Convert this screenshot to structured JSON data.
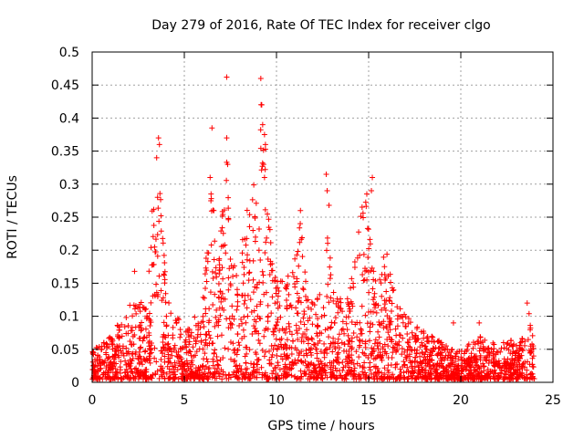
{
  "chart_data": {
    "type": "scatter",
    "title": "Day 279 of 2016, Rate Of TEC Index for receiver clgo",
    "xlabel": "GPS time / hours",
    "ylabel": "ROTI / TECUs",
    "xlim": [
      0,
      25
    ],
    "ylim": [
      0,
      0.5
    ],
    "xticks": [
      0,
      5,
      10,
      15,
      20,
      25
    ],
    "yticks": [
      0,
      0.05,
      0.1,
      0.15,
      0.2,
      0.25,
      0.3,
      0.35,
      0.4,
      0.45,
      0.5
    ],
    "grid": true,
    "marker": "plus",
    "color": "#ff0000",
    "envelope": {
      "x": [
        0,
        1,
        2,
        2.5,
        3,
        3.3,
        3.5,
        3.7,
        4,
        4.5,
        5,
        5.5,
        6,
        6.3,
        6.5,
        6.8,
        7,
        7.3,
        7.5,
        7.8,
        8,
        8.3,
        8.6,
        9,
        9.2,
        9.4,
        9.6,
        10,
        10.5,
        11,
        11.3,
        11.6,
        12,
        12.5,
        12.8,
        13,
        13.5,
        14,
        14.3,
        14.6,
        14.9,
        15.1,
        15.5,
        15.8,
        16,
        16.3,
        16.6,
        17,
        17.5,
        18,
        18.5,
        19,
        19.5,
        20,
        20.5,
        21,
        21.5,
        22,
        22.5,
        23,
        23.5,
        23.7,
        24
      ],
      "y": [
        0.05,
        0.07,
        0.12,
        0.12,
        0.14,
        0.3,
        0.37,
        0.3,
        0.15,
        0.1,
        0.09,
        0.1,
        0.12,
        0.25,
        0.3,
        0.15,
        0.25,
        0.35,
        0.2,
        0.18,
        0.18,
        0.25,
        0.3,
        0.3,
        0.46,
        0.38,
        0.25,
        0.16,
        0.15,
        0.2,
        0.26,
        0.15,
        0.12,
        0.14,
        0.26,
        0.15,
        0.13,
        0.15,
        0.2,
        0.28,
        0.31,
        0.22,
        0.15,
        0.2,
        0.21,
        0.16,
        0.12,
        0.1,
        0.09,
        0.08,
        0.07,
        0.06,
        0.05,
        0.05,
        0.06,
        0.07,
        0.06,
        0.06,
        0.07,
        0.06,
        0.07,
        0.12,
        0.05
      ]
    },
    "floor": {
      "x": [
        0,
        24
      ],
      "y": [
        0.005,
        0.005
      ]
    },
    "outliers": [
      {
        "x": 3.6,
        "y": 0.37
      },
      {
        "x": 3.65,
        "y": 0.36
      },
      {
        "x": 6.5,
        "y": 0.385
      },
      {
        "x": 7.3,
        "y": 0.37
      },
      {
        "x": 7.3,
        "y": 0.333
      },
      {
        "x": 7.35,
        "y": 0.33
      },
      {
        "x": 7.3,
        "y": 0.462
      },
      {
        "x": 9.15,
        "y": 0.46
      },
      {
        "x": 9.2,
        "y": 0.42
      },
      {
        "x": 9.25,
        "y": 0.39
      },
      {
        "x": 9.35,
        "y": 0.375
      },
      {
        "x": 9.4,
        "y": 0.36
      },
      {
        "x": 11.3,
        "y": 0.26
      },
      {
        "x": 12.7,
        "y": 0.315
      },
      {
        "x": 12.75,
        "y": 0.29
      },
      {
        "x": 12.85,
        "y": 0.268
      },
      {
        "x": 15.2,
        "y": 0.31
      },
      {
        "x": 15.15,
        "y": 0.29
      },
      {
        "x": 14.9,
        "y": 0.285
      },
      {
        "x": 2.3,
        "y": 0.168
      },
      {
        "x": 23.6,
        "y": 0.12
      },
      {
        "x": 21.0,
        "y": 0.09
      },
      {
        "x": 19.6,
        "y": 0.09
      },
      {
        "x": 3.5,
        "y": 0.34
      },
      {
        "x": 6.4,
        "y": 0.31
      },
      {
        "x": 6.45,
        "y": 0.285
      },
      {
        "x": 9.3,
        "y": 0.33
      },
      {
        "x": 9.35,
        "y": 0.31
      },
      {
        "x": 3.55,
        "y": 0.28
      },
      {
        "x": 6.6,
        "y": 0.26
      }
    ]
  }
}
